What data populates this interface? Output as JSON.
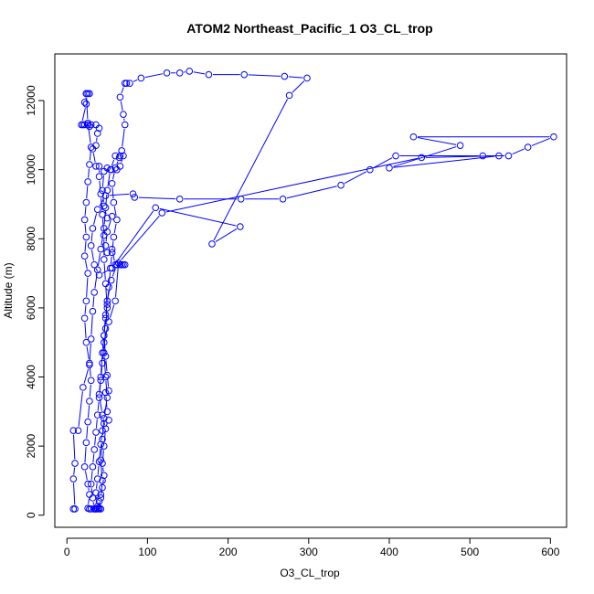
{
  "chart_data": {
    "type": "scatter",
    "title": "ATOM2 Northeast_Pacific_1 O3_CL_trop",
    "xlabel": "O3_CL_trop",
    "ylabel": "Altitude (m)",
    "xlim": [
      -15,
      620
    ],
    "ylim": [
      -350,
      13350
    ],
    "x_ticks": [
      0,
      100,
      200,
      300,
      400,
      500,
      600
    ],
    "y_ticks": [
      0,
      2000,
      4000,
      6000,
      8000,
      10000,
      12000
    ],
    "series_color": "#0000ff",
    "marker": "open-circle",
    "connected": true,
    "grid": false,
    "legend": "none",
    "series": [
      {
        "points": [
          [
            8,
            180
          ],
          [
            10,
            180
          ],
          [
            8,
            1050
          ],
          [
            10,
            1500
          ],
          [
            8,
            2450
          ],
          [
            14,
            2450
          ],
          [
            20,
            3700
          ],
          [
            28,
            4350
          ],
          [
            30,
            5100
          ],
          [
            32,
            5900
          ],
          [
            34,
            6450
          ],
          [
            38,
            7100
          ],
          [
            42,
            7700
          ],
          [
            46,
            8300
          ],
          [
            48,
            8900
          ],
          [
            50,
            9400
          ],
          [
            54,
            10000
          ],
          [
            60,
            10400
          ],
          [
            66,
            10400
          ],
          [
            70,
            10400
          ],
          [
            66,
            10100
          ],
          [
            62,
            10000
          ],
          [
            55,
            10000
          ],
          [
            50,
            10050
          ],
          [
            46,
            9950
          ],
          [
            44,
            9400
          ],
          [
            46,
            8950
          ],
          [
            50,
            8600
          ],
          [
            56,
            8650
          ],
          [
            50,
            8200
          ],
          [
            48,
            7800
          ],
          [
            50,
            7600
          ],
          [
            56,
            7700
          ],
          [
            60,
            7250
          ],
          [
            66,
            7250
          ],
          [
            70,
            7250
          ],
          [
            72,
            7250
          ],
          [
            68,
            7250
          ],
          [
            62,
            7250
          ],
          [
            55,
            6800
          ],
          [
            50,
            6200
          ],
          [
            48,
            5700
          ],
          [
            46,
            5200
          ],
          [
            44,
            4700
          ],
          [
            42,
            4000
          ],
          [
            40,
            3500
          ],
          [
            44,
            2900
          ],
          [
            48,
            2500
          ],
          [
            46,
            2000
          ],
          [
            44,
            1500
          ],
          [
            46,
            1150
          ],
          [
            44,
            800
          ],
          [
            42,
            600
          ],
          [
            40,
            400
          ],
          [
            38,
            200
          ],
          [
            40,
            180
          ],
          [
            42,
            180
          ],
          [
            38,
            180
          ],
          [
            40,
            200
          ],
          [
            42,
            500
          ],
          [
            44,
            1000
          ],
          [
            42,
            1600
          ],
          [
            44,
            2200
          ],
          [
            46,
            2800
          ],
          [
            50,
            3400
          ],
          [
            48,
            4000
          ],
          [
            46,
            4700
          ],
          [
            48,
            5400
          ],
          [
            50,
            6000
          ],
          [
            48,
            6700
          ],
          [
            46,
            7400
          ],
          [
            46,
            8100
          ],
          [
            44,
            8700
          ],
          [
            42,
            9300
          ],
          [
            40,
            9800
          ],
          [
            40,
            10100
          ],
          [
            36,
            10100
          ],
          [
            32,
            10600
          ],
          [
            36,
            10700
          ],
          [
            38,
            11050
          ],
          [
            40,
            11200
          ],
          [
            36,
            11300
          ],
          [
            30,
            11300
          ],
          [
            28,
            11250
          ],
          [
            26,
            11300
          ],
          [
            22,
            11300
          ],
          [
            20,
            11300
          ],
          [
            18,
            11300
          ],
          [
            24,
            11900
          ],
          [
            22,
            11950
          ],
          [
            24,
            12200
          ],
          [
            26,
            12200
          ],
          [
            28,
            12200
          ],
          [
            24,
            12200
          ],
          [
            26,
            11350
          ],
          [
            30,
            10650
          ],
          [
            28,
            10150
          ],
          [
            26,
            9650
          ],
          [
            24,
            9050
          ],
          [
            22,
            8550
          ],
          [
            24,
            8050
          ],
          [
            22,
            7500
          ],
          [
            26,
            7000
          ],
          [
            24,
            6200
          ],
          [
            22,
            5700
          ],
          [
            24,
            5000
          ],
          [
            28,
            4400
          ],
          [
            30,
            3900
          ],
          [
            28,
            3300
          ],
          [
            26,
            2700
          ],
          [
            24,
            2100
          ],
          [
            22,
            1400
          ],
          [
            26,
            900
          ],
          [
            28,
            600
          ],
          [
            26,
            200
          ],
          [
            28,
            180
          ],
          [
            30,
            180
          ],
          [
            34,
            180
          ],
          [
            36,
            180
          ],
          [
            38,
            260
          ],
          [
            36,
            650
          ],
          [
            38,
            1050
          ],
          [
            40,
            1550
          ],
          [
            42,
            2050
          ],
          [
            44,
            2450
          ],
          [
            46,
            2650
          ],
          [
            52,
            2750
          ],
          [
            50,
            3000
          ],
          [
            48,
            3550
          ],
          [
            52,
            3600
          ],
          [
            50,
            4050
          ],
          [
            48,
            4600
          ],
          [
            46,
            5200
          ],
          [
            48,
            5800
          ],
          [
            50,
            6100
          ],
          [
            52,
            6600
          ],
          [
            54,
            7150
          ],
          [
            56,
            7600
          ],
          [
            58,
            8050
          ],
          [
            62,
            8550
          ],
          [
            58,
            9050
          ],
          [
            56,
            9600
          ],
          [
            60,
            10050
          ],
          [
            65,
            10350
          ],
          [
            68,
            10550
          ],
          [
            72,
            11300
          ],
          [
            70,
            11600
          ],
          [
            66,
            12100
          ],
          [
            72,
            12500
          ],
          [
            74,
            12500
          ],
          [
            78,
            12500
          ],
          [
            92,
            12650
          ],
          [
            124,
            12800
          ],
          [
            140,
            12800
          ],
          [
            152,
            12850
          ],
          [
            176,
            12750
          ],
          [
            220,
            12750
          ],
          [
            270,
            12700
          ],
          [
            298,
            12650
          ],
          [
            276,
            12150
          ],
          [
            180,
            7850
          ],
          [
            215,
            8350
          ],
          [
            110,
            8900
          ],
          [
            56,
            7150
          ],
          [
            40,
            6950
          ],
          [
            34,
            7250
          ],
          [
            30,
            7800
          ],
          [
            32,
            8300
          ],
          [
            38,
            8850
          ],
          [
            48,
            9250
          ],
          [
            82,
            9300
          ],
          [
            84,
            9200
          ],
          [
            140,
            9150
          ],
          [
            216,
            9150
          ],
          [
            268,
            9150
          ],
          [
            340,
            9550
          ],
          [
            376,
            10000
          ],
          [
            408,
            10400
          ],
          [
            516,
            10400
          ],
          [
            548,
            10400
          ],
          [
            572,
            10650
          ],
          [
            604,
            10950
          ],
          [
            430,
            10950
          ],
          [
            488,
            10700
          ],
          [
            400,
            10050
          ],
          [
            536,
            10400
          ],
          [
            440,
            10350
          ],
          [
            118,
            8750
          ],
          [
            64,
            7300
          ],
          [
            60,
            6200
          ],
          [
            52,
            5600
          ],
          [
            46,
            5000
          ],
          [
            44,
            4400
          ],
          [
            42,
            3900
          ],
          [
            40,
            3400
          ],
          [
            38,
            2900
          ],
          [
            36,
            2400
          ],
          [
            34,
            1900
          ],
          [
            32,
            1400
          ],
          [
            30,
            900
          ],
          [
            32,
            500
          ],
          [
            34,
            180
          ],
          [
            36,
            180
          ]
        ]
      }
    ]
  }
}
